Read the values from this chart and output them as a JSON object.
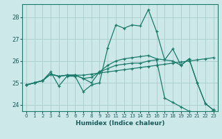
{
  "xlabel": "Humidex (Indice chaleur)",
  "bg_color": "#cce8e8",
  "grid_color": "#aacccc",
  "line_color": "#1a7a6a",
  "xlim": [
    -0.5,
    23.5
  ],
  "ylim": [
    23.7,
    28.6
  ],
  "yticks": [
    24,
    25,
    26,
    27,
    28
  ],
  "xticks": [
    0,
    1,
    2,
    3,
    4,
    5,
    6,
    7,
    8,
    9,
    10,
    11,
    12,
    13,
    14,
    15,
    16,
    17,
    18,
    19,
    20,
    21,
    22,
    23
  ],
  "lines": [
    [
      24.9,
      25.0,
      25.1,
      25.5,
      24.85,
      25.3,
      25.3,
      24.6,
      24.9,
      25.0,
      26.6,
      27.65,
      27.5,
      27.65,
      27.6,
      28.35,
      27.35,
      26.05,
      26.55,
      25.8,
      26.1,
      25.0,
      24.05,
      23.75
    ],
    [
      24.9,
      25.0,
      25.1,
      25.4,
      25.3,
      25.35,
      25.35,
      25.35,
      25.4,
      25.45,
      25.5,
      25.55,
      25.6,
      25.65,
      25.7,
      25.75,
      25.8,
      25.85,
      25.9,
      25.95,
      26.0,
      26.05,
      26.1,
      26.15
    ],
    [
      24.9,
      25.0,
      25.1,
      25.4,
      25.3,
      25.35,
      25.35,
      25.2,
      25.25,
      25.5,
      25.65,
      25.8,
      25.85,
      25.9,
      25.9,
      26.0,
      26.05,
      24.3,
      24.1,
      23.9,
      23.7,
      23.6,
      23.5,
      23.75
    ],
    [
      24.9,
      25.0,
      25.1,
      25.4,
      25.3,
      25.35,
      25.35,
      25.2,
      25.0,
      25.5,
      25.8,
      26.0,
      26.1,
      26.15,
      26.2,
      26.25,
      26.1,
      26.05,
      26.0,
      25.8,
      26.1,
      25.0,
      24.05,
      23.75
    ]
  ]
}
